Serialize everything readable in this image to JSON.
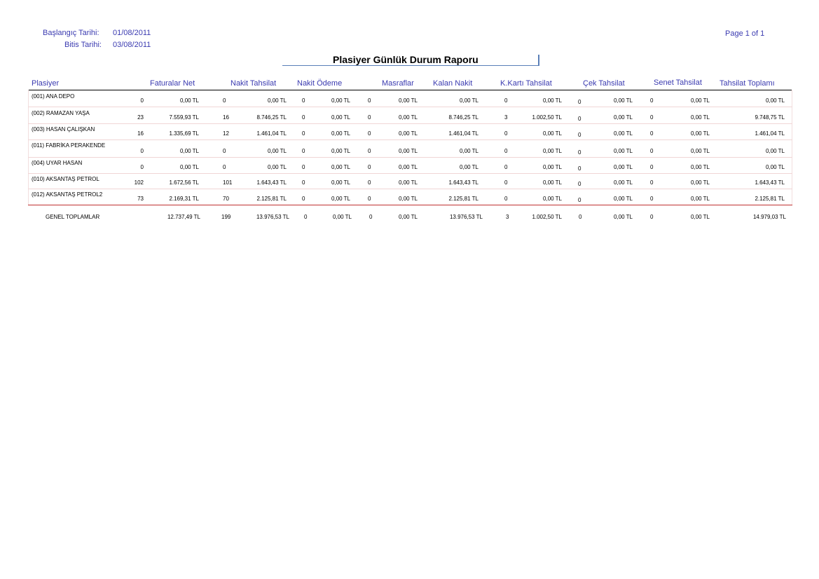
{
  "header": {
    "start_label": "Başlangıç Tarihi:",
    "start_value": "01/08/2011",
    "end_label": "Bitis Tarihi:",
    "end_value": "03/08/2011",
    "page": "Page 1 of 1",
    "title": "Plasiyer Günlük Durum Raporu"
  },
  "columns": {
    "plasiyer": "Plasiyer",
    "faturalar": "Faturalar Net",
    "nakit_tahsilat": "Nakit Tahsilat",
    "nakit_odeme": "Nakit Ödeme",
    "masraflar": "Masraflar",
    "kalan_nakit": "Kalan Nakit",
    "kkarti": "K.Kartı Tahsilat",
    "cek": "Çek Tahsilat",
    "senet": "Senet Tahsilat",
    "toplam": "Tahsilat Toplamı"
  },
  "rows": [
    {
      "name": "(001) ANA DEPO",
      "f_cnt": "0",
      "f_amt": "0,00 TL",
      "nt_cnt": "0",
      "nt_amt": "0,00 TL",
      "no_cnt": "0",
      "no_amt": "0,00 TL",
      "m_cnt": "0",
      "m_amt": "0,00 TL",
      "kalan": "0,00 TL",
      "kk_cnt": "0",
      "kk_amt": "0,00 TL",
      "c_cnt": "0",
      "c_amt": "0,00 TL",
      "s_cnt": "0",
      "s_amt": "0,00 TL",
      "toplam": "0,00 TL"
    },
    {
      "name": "(002) RAMAZAN YAŞA",
      "f_cnt": "23",
      "f_amt": "7.559,93 TL",
      "nt_cnt": "16",
      "nt_amt": "8.746,25 TL",
      "no_cnt": "0",
      "no_amt": "0,00 TL",
      "m_cnt": "0",
      "m_amt": "0,00 TL",
      "kalan": "8.746,25 TL",
      "kk_cnt": "3",
      "kk_amt": "1.002,50 TL",
      "c_cnt": "0",
      "c_amt": "0,00 TL",
      "s_cnt": "0",
      "s_amt": "0,00 TL",
      "toplam": "9.748,75 TL"
    },
    {
      "name": "(003) HASAN ÇALIŞKAN",
      "f_cnt": "16",
      "f_amt": "1.335,69 TL",
      "nt_cnt": "12",
      "nt_amt": "1.461,04 TL",
      "no_cnt": "0",
      "no_amt": "0,00 TL",
      "m_cnt": "0",
      "m_amt": "0,00 TL",
      "kalan": "1.461,04 TL",
      "kk_cnt": "0",
      "kk_amt": "0,00 TL",
      "c_cnt": "0",
      "c_amt": "0,00 TL",
      "s_cnt": "0",
      "s_amt": "0,00 TL",
      "toplam": "1.461,04 TL"
    },
    {
      "name": "(011) FABRİKA PERAKENDE",
      "f_cnt": "0",
      "f_amt": "0,00 TL",
      "nt_cnt": "0",
      "nt_amt": "0,00 TL",
      "no_cnt": "0",
      "no_amt": "0,00 TL",
      "m_cnt": "0",
      "m_amt": "0,00 TL",
      "kalan": "0,00 TL",
      "kk_cnt": "0",
      "kk_amt": "0,00 TL",
      "c_cnt": "0",
      "c_amt": "0,00 TL",
      "s_cnt": "0",
      "s_amt": "0,00 TL",
      "toplam": "0,00 TL"
    },
    {
      "name": "(004) UYAR HASAN",
      "f_cnt": "0",
      "f_amt": "0,00 TL",
      "nt_cnt": "0",
      "nt_amt": "0,00 TL",
      "no_cnt": "0",
      "no_amt": "0,00 TL",
      "m_cnt": "0",
      "m_amt": "0,00 TL",
      "kalan": "0,00 TL",
      "kk_cnt": "0",
      "kk_amt": "0,00 TL",
      "c_cnt": "0",
      "c_amt": "0,00 TL",
      "s_cnt": "0",
      "s_amt": "0,00 TL",
      "toplam": "0,00 TL"
    },
    {
      "name": "(010) AKSANTAŞ PETROL",
      "f_cnt": "102",
      "f_amt": "1.672,56 TL",
      "nt_cnt": "101",
      "nt_amt": "1.643,43 TL",
      "no_cnt": "0",
      "no_amt": "0,00 TL",
      "m_cnt": "0",
      "m_amt": "0,00 TL",
      "kalan": "1.643,43 TL",
      "kk_cnt": "0",
      "kk_amt": "0,00 TL",
      "c_cnt": "0",
      "c_amt": "0,00 TL",
      "s_cnt": "0",
      "s_amt": "0,00 TL",
      "toplam": "1.643,43 TL"
    },
    {
      "name": "(012) AKSANTAŞ PETROL2",
      "f_cnt": "73",
      "f_amt": "2.169,31 TL",
      "nt_cnt": "70",
      "nt_amt": "2.125,81 TL",
      "no_cnt": "0",
      "no_amt": "0,00 TL",
      "m_cnt": "0",
      "m_amt": "0,00 TL",
      "kalan": "2.125,81 TL",
      "kk_cnt": "0",
      "kk_amt": "0,00 TL",
      "c_cnt": "0",
      "c_amt": "0,00 TL",
      "s_cnt": "0",
      "s_amt": "0,00 TL",
      "toplam": "2.125,81 TL"
    }
  ],
  "totals": {
    "label": "GENEL TOPLAMLAR",
    "f_amt": "12.737,49 TL",
    "nt_cnt": "199",
    "nt_amt": "13.976,53 TL",
    "no_cnt": "0",
    "no_amt": "0,00 TL",
    "m_cnt": "0",
    "m_amt": "0,00 TL",
    "kalan": "13.976,53 TL",
    "kk_cnt": "3",
    "kk_amt": "1.002,50 TL",
    "c_cnt": "0",
    "c_amt": "0,00 TL",
    "s_cnt": "0",
    "s_amt": "0,00 TL",
    "toplam": "14.979,03 TL"
  }
}
